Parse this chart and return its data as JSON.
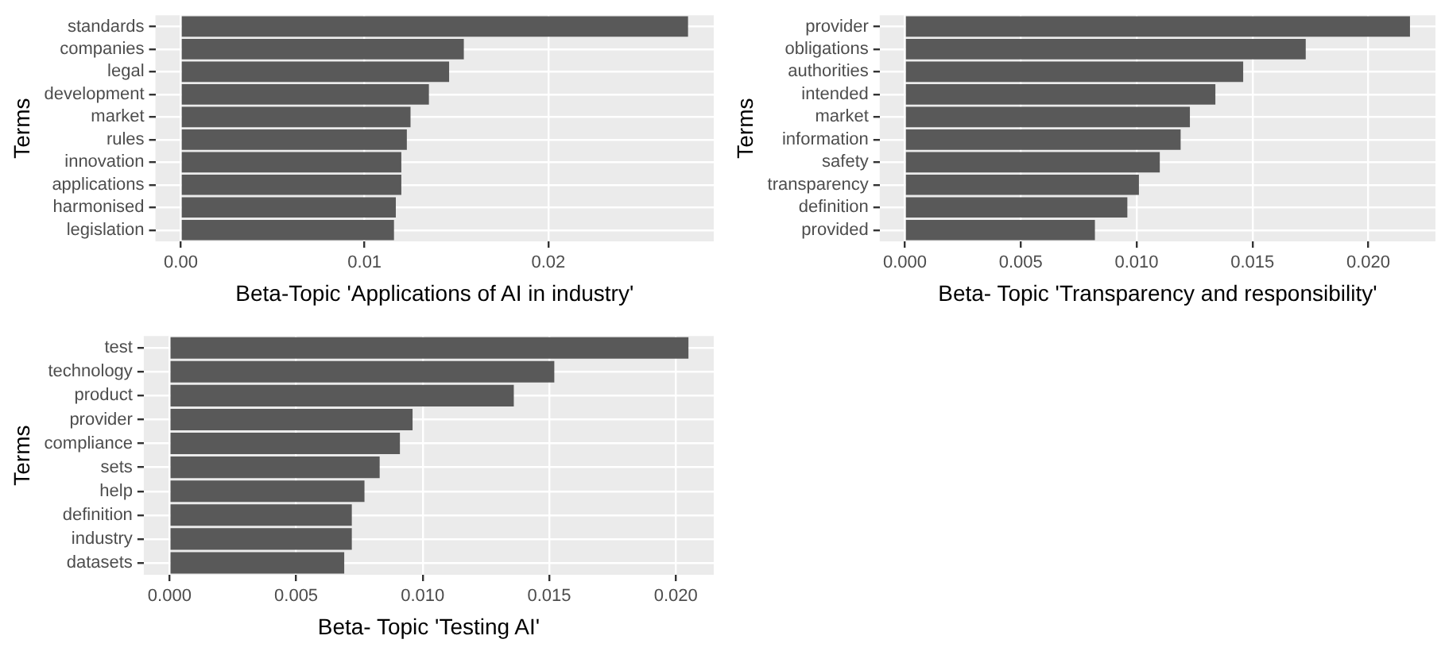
{
  "chart_data": [
    {
      "type": "bar",
      "orientation": "horizontal",
      "xlabel": "Beta-Topic 'Applications of AI in industry'",
      "ylabel": "Terms",
      "categories": [
        "standards",
        "companies",
        "legal",
        "development",
        "market",
        "rules",
        "innovation",
        "applications",
        "harmonised",
        "legislation"
      ],
      "values": [
        0.0276,
        0.0154,
        0.0146,
        0.0135,
        0.0125,
        0.0123,
        0.012,
        0.012,
        0.0117,
        0.0116
      ],
      "color": "#595959",
      "xlim": [
        -0.00138,
        0.029
      ],
      "xticks": [
        {
          "value": 0,
          "label": "0.00"
        },
        {
          "value": 0.01,
          "label": "0.01"
        },
        {
          "value": 0.02,
          "label": "0.02"
        }
      ],
      "grid": true,
      "legend": false
    },
    {
      "type": "bar",
      "orientation": "horizontal",
      "xlabel": "Beta- Topic 'Transparency and responsibility'",
      "ylabel": "Terms",
      "categories": [
        "provider",
        "obligations",
        "authorities",
        "intended",
        "market",
        "information",
        "safety",
        "transparency",
        "definition",
        "provided"
      ],
      "values": [
        0.0218,
        0.0173,
        0.0146,
        0.0134,
        0.0123,
        0.0119,
        0.011,
        0.0101,
        0.0096,
        0.0082
      ],
      "color": "#595959",
      "xlim": [
        -0.00109,
        0.0229
      ],
      "xticks": [
        {
          "value": 0,
          "label": "0.000"
        },
        {
          "value": 0.005,
          "label": "0.005"
        },
        {
          "value": 0.01,
          "label": "0.010"
        },
        {
          "value": 0.015,
          "label": "0.015"
        },
        {
          "value": 0.02,
          "label": "0.020"
        }
      ],
      "grid": true,
      "legend": false
    },
    {
      "type": "bar",
      "orientation": "horizontal",
      "xlabel": "Beta- Topic 'Testing AI'",
      "ylabel": "Terms",
      "categories": [
        "test",
        "technology",
        "product",
        "provider",
        "compliance",
        "sets",
        "help",
        "definition",
        "industry",
        "datasets"
      ],
      "values": [
        0.0205,
        0.0152,
        0.0136,
        0.0096,
        0.0091,
        0.0083,
        0.0077,
        0.0072,
        0.0072,
        0.0069
      ],
      "color": "#595959",
      "xlim": [
        -0.00102,
        0.0215
      ],
      "xticks": [
        {
          "value": 0,
          "label": "0.000"
        },
        {
          "value": 0.005,
          "label": "0.005"
        },
        {
          "value": 0.01,
          "label": "0.010"
        },
        {
          "value": 0.015,
          "label": "0.015"
        },
        {
          "value": 0.02,
          "label": "0.020"
        }
      ],
      "grid": true,
      "legend": false
    }
  ]
}
